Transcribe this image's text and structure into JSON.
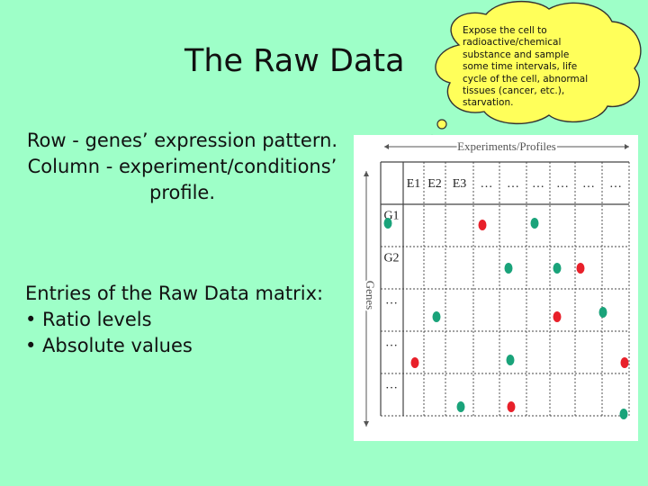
{
  "slide": {
    "title": "The Raw Data",
    "description_lines": [
      "Row - genes’ expression pattern.",
      "Column - experiment/conditions’",
      "profile."
    ],
    "entries_heading": "Entries of the Raw Data matrix:",
    "entries_bullets": [
      "• Ratio levels",
      "• Absolute values"
    ]
  },
  "callout": {
    "text": "Expose the cell to radioactive/chemical substance and sample some time intervals, life cycle of the cell, abnormal tissues (cancer, etc.), starvation."
  },
  "matrix": {
    "columns_axis_label": "Experiments/Profiles",
    "rows_axis_label": "Genes",
    "column_headers": [
      "E1",
      "E2",
      "E3",
      "…",
      "…",
      "…",
      "…",
      "…",
      "…"
    ],
    "row_headers": [
      "G1",
      "G2",
      "…",
      "…",
      "…"
    ],
    "colors": {
      "red": "#e8202a",
      "green": "#1aa37a"
    }
  }
}
